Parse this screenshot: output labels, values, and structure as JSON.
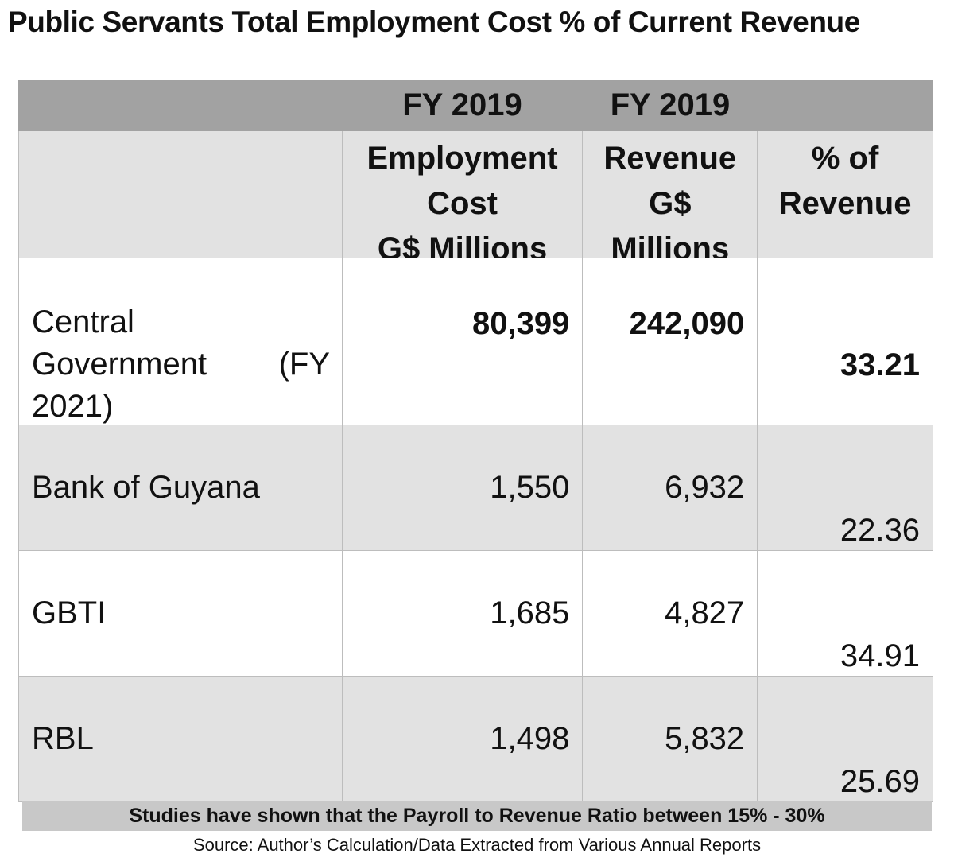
{
  "title": "Public Servants Total Employment Cost % of Current Revenue",
  "chart_data": {
    "type": "table",
    "title": "Public Servants Total Employment Cost % of Current Revenue",
    "group_headers": [
      "FY 2019",
      "FY 2019"
    ],
    "columns": [
      "",
      "Employment Cost G$ Millions",
      "Revenue G$ Millions",
      "% of Revenue"
    ],
    "header_lines": {
      "col2": [
        "Employment",
        "Cost",
        "G$ Millions"
      ],
      "col3": [
        "Revenue",
        "G$",
        "Millions"
      ],
      "col4": [
        "% of",
        "Revenue"
      ]
    },
    "rows": [
      {
        "entity": "Central Government (FY 2021)",
        "entity_lines": [
          "Central",
          "Government",
          "(FY",
          "2021)"
        ],
        "employment_cost": "80,399",
        "revenue": "242,090",
        "pct": "33.21"
      },
      {
        "entity": "Bank of Guyana",
        "employment_cost": "1,550",
        "revenue": "6,932",
        "pct": "22.36"
      },
      {
        "entity": "GBTI",
        "employment_cost": "1,685",
        "revenue": "4,827",
        "pct": "34.91"
      },
      {
        "entity": "RBL",
        "employment_cost": "1,498",
        "revenue": "5,832",
        "pct": "25.69"
      }
    ]
  },
  "note": "Studies have shown that the Payroll to Revenue Ratio between 15% - 30%",
  "source": "Source: Author’s Calculation/Data Extracted from Various Annual Reports",
  "colors": {
    "year_band": "#a2a2a2",
    "header_bg": "#e2e2e2",
    "alt_row_bg": "#e2e2e2",
    "note_bg": "#c8c8c8"
  }
}
